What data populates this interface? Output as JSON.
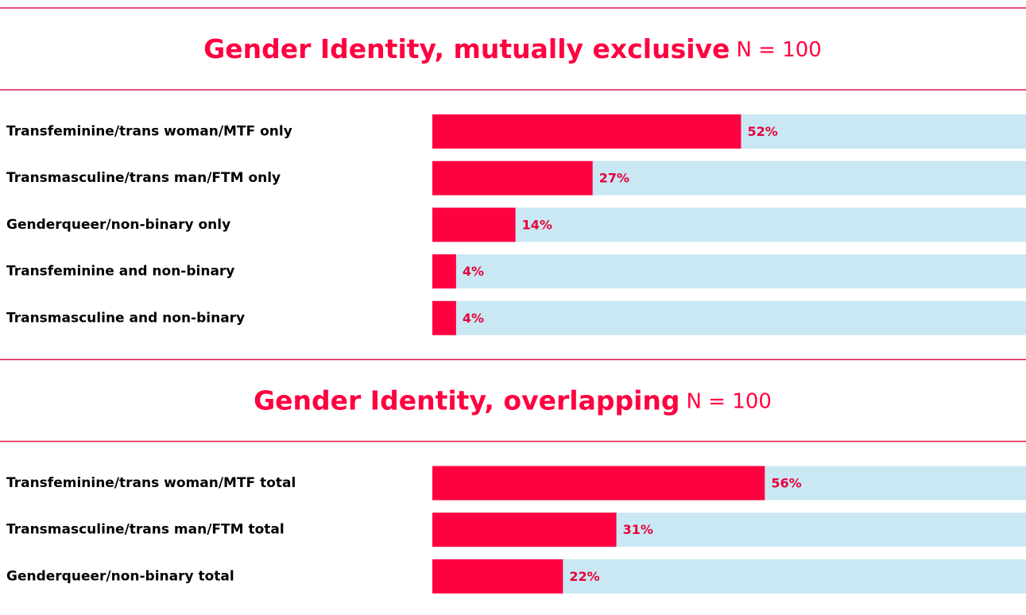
{
  "chart_data": [
    {
      "type": "bar",
      "orientation": "horizontal",
      "title": "Gender Identity, mutually exclusive",
      "subtitle": "N = 100",
      "categories": [
        "Transfeminine/trans woman/MTF only",
        "Transmasculine/trans man/FTM only",
        "Genderqueer/non-binary only",
        "Transfeminine and non-binary",
        "Transmasculine and non-binary"
      ],
      "values": [
        52,
        27,
        14,
        4,
        4
      ],
      "value_labels": [
        "52%",
        "27%",
        "14%",
        "4%",
        "4%"
      ],
      "xlim": [
        0,
        100
      ],
      "color": "#ff0040",
      "track_color": "#c9e8f3"
    },
    {
      "type": "bar",
      "orientation": "horizontal",
      "title": "Gender Identity, overlapping",
      "subtitle": "N = 100",
      "categories": [
        "Transfeminine/trans woman/MTF total",
        "Transmasculine/trans man/FTM total",
        "Genderqueer/non-binary total"
      ],
      "values": [
        56,
        31,
        22
      ],
      "value_labels": [
        "56%",
        "31%",
        "22%"
      ],
      "xlim": [
        0,
        100
      ],
      "color": "#ff0040",
      "track_color": "#c9e8f3"
    }
  ]
}
